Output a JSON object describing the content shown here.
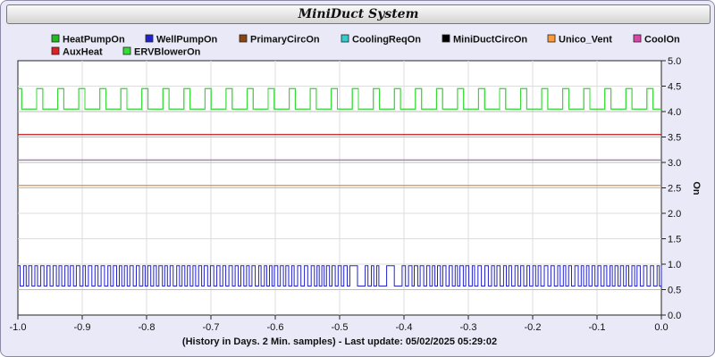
{
  "window": {
    "title": "MiniDuct System"
  },
  "chart_data": {
    "type": "line",
    "title": "MiniDuct System",
    "xlabel": "(History in Days. 2 Min. samples) - Last update: 05/02/2025 05:29:02",
    "ylabel": "On",
    "xlim": [
      -1.0,
      0.0
    ],
    "ylim": [
      0.0,
      5.0
    ],
    "xticks": [
      "-1.0",
      "-0.9",
      "-0.8",
      "-0.7",
      "-0.6",
      "-0.5",
      "-0.4",
      "-0.3",
      "-0.2",
      "-0.1",
      "0.0"
    ],
    "yticks": [
      "0.0",
      "0.5",
      "1.0",
      "1.5",
      "2.0",
      "2.5",
      "3.0",
      "3.5",
      "4.0",
      "4.5",
      "5.0"
    ],
    "grid": true,
    "legend_position": "top",
    "series": [
      {
        "name": "HeatPumpOn",
        "color": "#22bb22",
        "offset": 4.0,
        "low": 4.05,
        "high": 4.45,
        "pattern": "periodic"
      },
      {
        "name": "WellPumpOn",
        "color": "#2222cc",
        "offset": 0.5,
        "low": 0.57,
        "high": 0.97,
        "pattern": "rapid"
      },
      {
        "name": "PrimaryCircOn",
        "color": "#8b4513",
        "offset": 2.5,
        "value": 2.55
      },
      {
        "name": "CoolingReqOn",
        "color": "#33cccc",
        "offset": 3.0,
        "value": 3.05
      },
      {
        "name": "MiniDuctCircOn",
        "color": "#000000",
        "offset": 3.5,
        "value": 3.55
      },
      {
        "name": "Unico_Vent",
        "color": "#ff9933",
        "offset": 2.5,
        "value": 2.55
      },
      {
        "name": "CoolOn",
        "color": "#dd44aa",
        "offset": 3.0,
        "value": 3.05
      },
      {
        "name": "AuxHeat",
        "color": "#dd2222",
        "offset": 3.5,
        "value": 3.55
      },
      {
        "name": "ERVBlowerOn",
        "color": "#33dd33",
        "offset": 4.0,
        "low": 4.05,
        "high": 4.45,
        "pattern": "periodic"
      }
    ]
  }
}
